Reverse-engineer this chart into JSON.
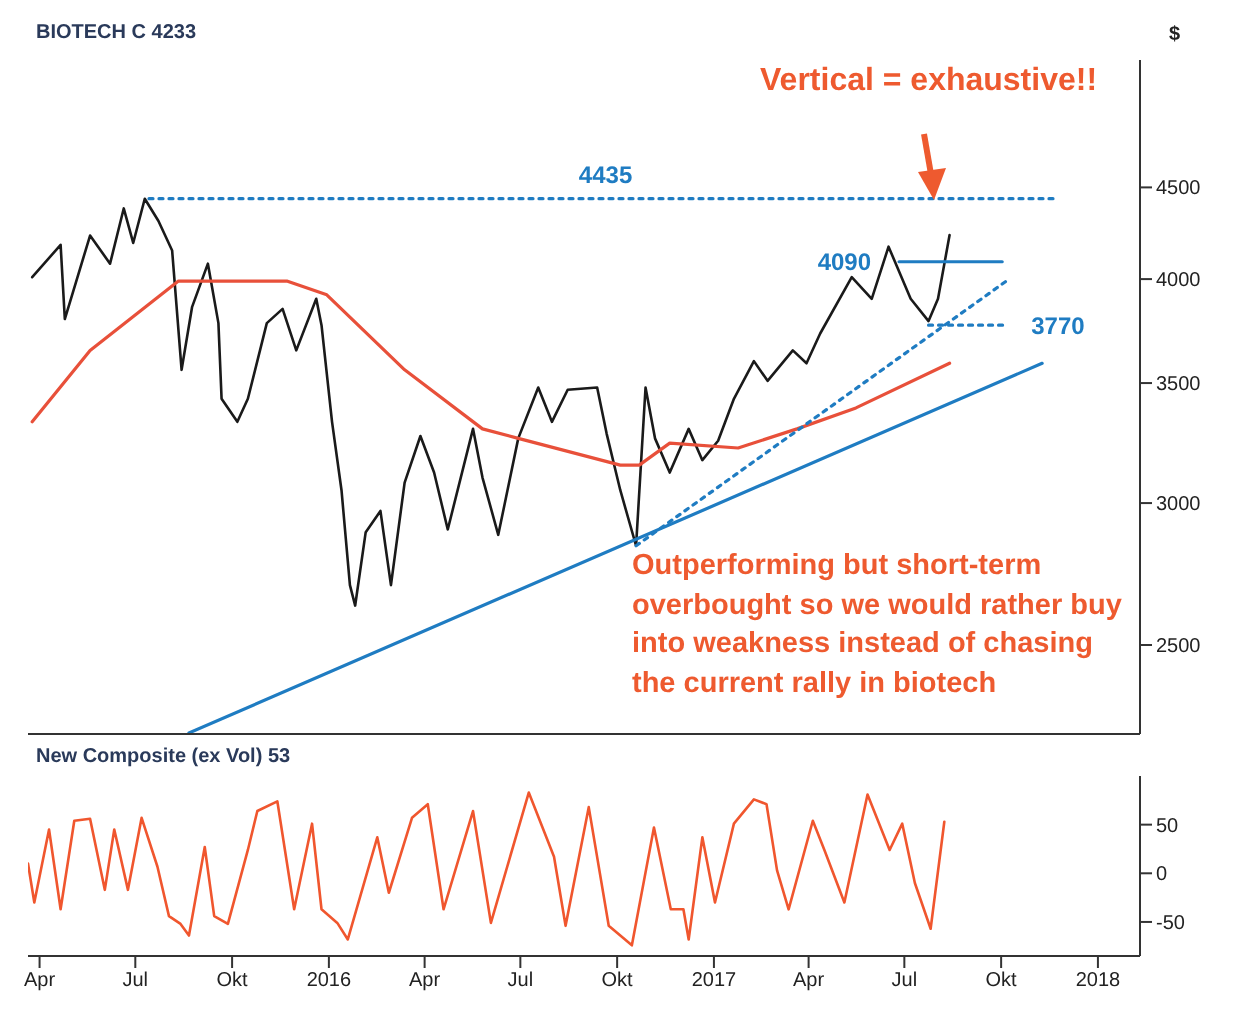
{
  "chart_data": [
    {
      "type": "line",
      "title": "BIOTECH C 4233",
      "ylabel": "$",
      "log": "y",
      "tick_labels": "y",
      "legend": false,
      "grid": false,
      "xlim": [
        "2015-03-21",
        "2018-02-10"
      ],
      "xticks": [
        {
          "value": "2015-04-01",
          "label": null
        },
        {
          "value": "2015-07-01",
          "label": null
        },
        {
          "value": "2015-10-01",
          "label": null
        },
        {
          "value": "2016-01-01",
          "label": null
        },
        {
          "value": "2016-04-01",
          "label": null
        },
        {
          "value": "2016-07-01",
          "label": null
        },
        {
          "value": "2016-10-01",
          "label": null
        },
        {
          "value": "2017-01-01",
          "label": null
        },
        {
          "value": "2017-04-01",
          "label": null
        },
        {
          "value": "2017-07-01",
          "label": null
        },
        {
          "value": "2017-10-01",
          "label": null
        },
        {
          "value": "2018-01-01",
          "label": null
        }
      ],
      "ylim": [
        2230,
        5300
      ],
      "yticks": [
        2500,
        3000,
        3500,
        4000,
        4500
      ],
      "series": [
        {
          "color": "#1a1a1a",
          "x": [
            "2015-03-25",
            "2015-04-21",
            "2015-04-25",
            "2015-05-19",
            "2015-06-07",
            "2015-06-20",
            "2015-06-29",
            "2015-07-10",
            "2015-07-23",
            "2015-08-05",
            "2015-08-14",
            "2015-08-24",
            "2015-09-08",
            "2015-09-18",
            "2015-09-21",
            "2015-10-06",
            "2015-10-16",
            "2015-11-03",
            "2015-11-18",
            "2015-12-01",
            "2015-12-20",
            "2015-12-25",
            "2016-01-04",
            "2016-01-13",
            "2016-01-21",
            "2016-01-26",
            "2016-02-05",
            "2016-02-19",
            "2016-02-29",
            "2016-03-13",
            "2016-03-28",
            "2016-04-10",
            "2016-04-23",
            "2016-05-17",
            "2016-05-26",
            "2016-06-10",
            "2016-06-29",
            "2016-07-18",
            "2016-07-31",
            "2016-08-15",
            "2016-09-12",
            "2016-09-21",
            "2016-10-04",
            "2016-10-19",
            "2016-10-28",
            "2016-11-06",
            "2016-11-20",
            "2016-12-08",
            "2016-12-21",
            "2017-01-05",
            "2017-01-20",
            "2017-02-08",
            "2017-02-21",
            "2017-03-17",
            "2017-03-30",
            "2017-04-12",
            "2017-05-12",
            "2017-05-31",
            "2017-06-16",
            "2017-07-07",
            "2017-07-24",
            "2017-08-02",
            "2017-08-13"
          ],
          "values": [
            4010,
            4180,
            3800,
            4230,
            4080,
            4380,
            4190,
            4435,
            4310,
            4150,
            3560,
            3860,
            4080,
            3780,
            3430,
            3330,
            3430,
            3780,
            3850,
            3650,
            3900,
            3770,
            3330,
            3050,
            2700,
            2630,
            2890,
            2970,
            2700,
            3080,
            3270,
            3120,
            2900,
            3300,
            3100,
            2880,
            3260,
            3480,
            3330,
            3470,
            3480,
            3280,
            3050,
            2840,
            3480,
            3260,
            3120,
            3300,
            3170,
            3250,
            3430,
            3600,
            3510,
            3650,
            3590,
            3730,
            4010,
            3900,
            4170,
            3900,
            3790,
            3900,
            4233
          ]
        },
        {
          "color": "#e8503a",
          "x": [
            "2015-03-25",
            "2015-05-19",
            "2015-08-11",
            "2015-11-22",
            "2015-12-30",
            "2016-03-13",
            "2016-05-26",
            "2016-06-29",
            "2016-10-04",
            "2016-10-22",
            "2016-11-20",
            "2017-01-24",
            "2017-03-21",
            "2017-05-16",
            "2017-08-13"
          ],
          "values": [
            3330,
            3650,
            3990,
            3990,
            3920,
            3560,
            3300,
            3260,
            3150,
            3150,
            3240,
            3220,
            3300,
            3390,
            3590
          ]
        },
        {
          "color": "#1f7cc2",
          "x": [
            "2015-08-21",
            "2017-11-09"
          ],
          "values": [
            2233,
            3590
          ]
        },
        {
          "color": "#1f7cc2",
          "line_style": "dotted",
          "x": [
            "2016-10-19",
            "2017-10-06"
          ],
          "values": [
            2840,
            3990
          ]
        },
        {
          "color": "#1f7cc2",
          "line_style": "dotted",
          "x": [
            "2015-07-14",
            "2017-11-24"
          ],
          "values": [
            4435,
            4435
          ]
        },
        {
          "color": "#1f7cc2",
          "x": [
            "2017-06-26",
            "2017-10-02"
          ],
          "values": [
            4090,
            4090
          ]
        },
        {
          "color": "#1f7cc2",
          "line_style": "dotted",
          "x": [
            "2017-07-24",
            "2017-10-03"
          ],
          "values": [
            3770,
            3770
          ]
        }
      ],
      "annotations": [
        "Vertical = exhaustive!!",
        "Outperforming but short-term overbought so we would rather buy into weakness instead of chasing the current rally in biotech",
        {
          "text": "4435",
          "x": "2016-09-20",
          "y": 4435
        },
        {
          "text": "4090",
          "x": "2017-06-26",
          "y": 4090
        },
        {
          "text": "3770",
          "x": "2017-10-03",
          "y": 3770
        }
      ]
    },
    {
      "type": "line",
      "title": "New Composite (ex Vol) 53",
      "legend": false,
      "grid": false,
      "xlim": [
        "2015-03-21",
        "2018-02-10"
      ],
      "xticks": [
        {
          "value": "2015-04-01",
          "label": "Apr"
        },
        {
          "value": "2015-07-01",
          "label": "Jul"
        },
        {
          "value": "2015-10-01",
          "label": "Okt"
        },
        {
          "value": "2016-01-01",
          "label": "2016"
        },
        {
          "value": "2016-04-01",
          "label": "Apr"
        },
        {
          "value": "2016-07-01",
          "label": "Jul"
        },
        {
          "value": "2016-10-01",
          "label": "Okt"
        },
        {
          "value": "2017-01-01",
          "label": "2017"
        },
        {
          "value": "2017-04-01",
          "label": "Apr"
        },
        {
          "value": "2017-07-01",
          "label": "Jul"
        },
        {
          "value": "2017-10-01",
          "label": "Okt"
        },
        {
          "value": "2018-01-01",
          "label": "2018"
        }
      ],
      "ylim": [
        -85,
        100
      ],
      "yticks": [
        -50,
        0,
        50
      ],
      "series": [
        {
          "color": "#f0562e",
          "x": [
            "2015-03-21",
            "2015-03-27",
            "2015-04-10",
            "2015-04-21",
            "2015-05-04",
            "2015-05-19",
            "2015-06-02",
            "2015-06-11",
            "2015-06-24",
            "2015-07-07",
            "2015-07-22",
            "2015-08-02",
            "2015-08-13",
            "2015-08-21",
            "2015-09-05",
            "2015-09-14",
            "2015-09-27",
            "2015-10-16",
            "2015-10-25",
            "2015-11-13",
            "2015-11-29",
            "2015-12-16",
            "2015-12-25",
            "2016-01-09",
            "2016-01-19",
            "2016-02-16",
            "2016-02-27",
            "2016-03-20",
            "2016-04-04",
            "2016-04-19",
            "2016-05-17",
            "2016-06-03",
            "2016-07-09",
            "2016-08-02",
            "2016-08-13",
            "2016-09-04",
            "2016-09-23",
            "2016-10-15",
            "2016-11-05",
            "2016-11-21",
            "2016-12-03",
            "2016-12-08",
            "2016-12-21",
            "2017-01-02",
            "2017-01-20",
            "2017-02-08",
            "2017-02-20",
            "2017-03-02",
            "2017-03-13",
            "2017-04-05",
            "2017-04-16",
            "2017-05-05",
            "2017-05-27",
            "2017-06-17",
            "2017-06-29",
            "2017-07-11",
            "2017-07-26",
            "2017-08-08"
          ],
          "values": [
            10,
            -30,
            45,
            -37,
            54,
            56,
            -17,
            45,
            -17,
            57,
            7,
            -44,
            -52,
            -64,
            27,
            -44,
            -52,
            24,
            64,
            74,
            -37,
            51,
            -37,
            -51,
            -68,
            37,
            -20,
            57,
            71,
            -37,
            64,
            -51,
            83,
            17,
            -54,
            68,
            -54,
            -74,
            47,
            -37,
            -37,
            -68,
            37,
            -30,
            51,
            76,
            71,
            3,
            -37,
            54,
            24,
            -30,
            81,
            24,
            51,
            -10,
            -57,
            53
          ]
        }
      ]
    }
  ]
}
